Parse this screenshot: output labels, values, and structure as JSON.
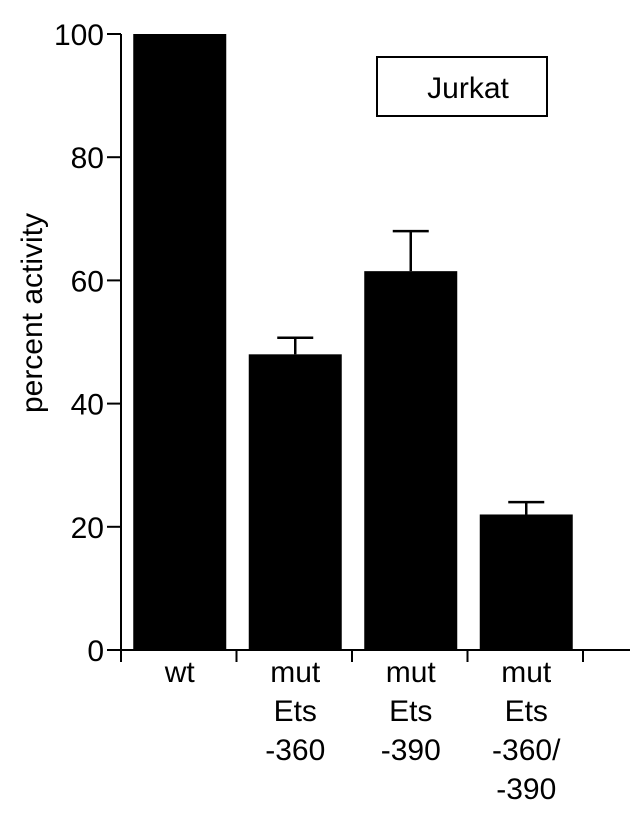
{
  "chart_data": {
    "type": "bar",
    "title": "",
    "xlabel": "",
    "ylabel": "percent activity",
    "ylim": [
      0,
      100
    ],
    "yticks": [
      0,
      20,
      40,
      60,
      80,
      100
    ],
    "grid": false,
    "legend": {
      "text": "Jurkat",
      "placement": "top-right"
    },
    "categories": [
      [
        "wt"
      ],
      [
        "mut",
        "Ets",
        "-360"
      ],
      [
        "mut",
        "Ets",
        "-390"
      ],
      [
        "mut",
        "Ets",
        "-360/",
        "-390"
      ]
    ],
    "values": [
      100,
      48,
      61.5,
      22
    ],
    "errors": [
      0,
      2.7,
      6.5,
      2.0
    ],
    "bar_color": "#000000"
  }
}
